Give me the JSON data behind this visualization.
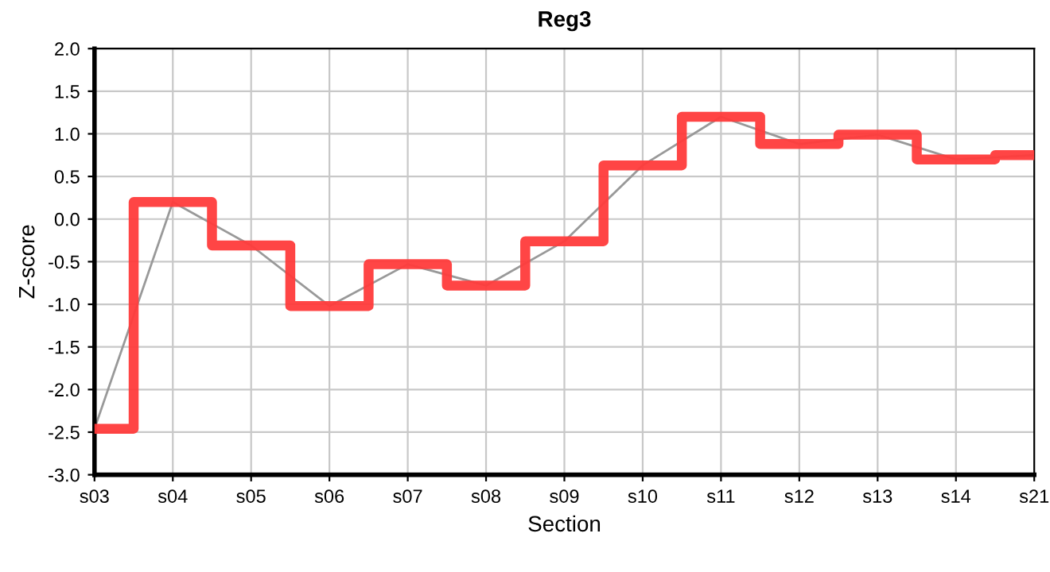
{
  "chart_data": {
    "type": "step",
    "title": "Reg3",
    "xlabel": "Section",
    "ylabel": "Z-score",
    "categories": [
      "s03",
      "s04",
      "s05",
      "s06",
      "s07",
      "s08",
      "s09",
      "s10",
      "s11",
      "s12",
      "s13",
      "s14",
      "s21"
    ],
    "series": [
      {
        "type": "line",
        "color": "#999999",
        "values": [
          -2.46,
          0.2,
          -0.31,
          -1.02,
          -0.53,
          -0.78,
          -0.26,
          0.63,
          1.2,
          0.88,
          0.99,
          0.7,
          0.75
        ]
      },
      {
        "color": "#ff3b3b",
        "values": [
          -2.46,
          0.2,
          -0.31,
          -1.02,
          -0.53,
          -0.78,
          -0.26,
          0.63,
          1.2,
          0.88,
          0.99,
          0.7,
          0.75
        ]
      }
    ],
    "ylim": [
      -3.0,
      2.0
    ],
    "yticks": [
      {
        "value": -3.0,
        "label": "-3.0"
      },
      {
        "value": -2.5,
        "label": "-2.5"
      },
      {
        "value": -2.0,
        "label": "-2.0"
      },
      {
        "value": -1.5,
        "label": "-1.5"
      },
      {
        "value": -1.0,
        "label": "-1.0"
      },
      {
        "value": -0.5,
        "label": "-0.5"
      },
      {
        "value": 0.0,
        "label": "0.0"
      },
      {
        "value": 0.5,
        "label": "0.5"
      },
      {
        "value": 1.0,
        "label": "1.0"
      },
      {
        "value": 1.5,
        "label": "1.5"
      },
      {
        "value": 2.0,
        "label": "2.0"
      }
    ],
    "grid": true
  }
}
